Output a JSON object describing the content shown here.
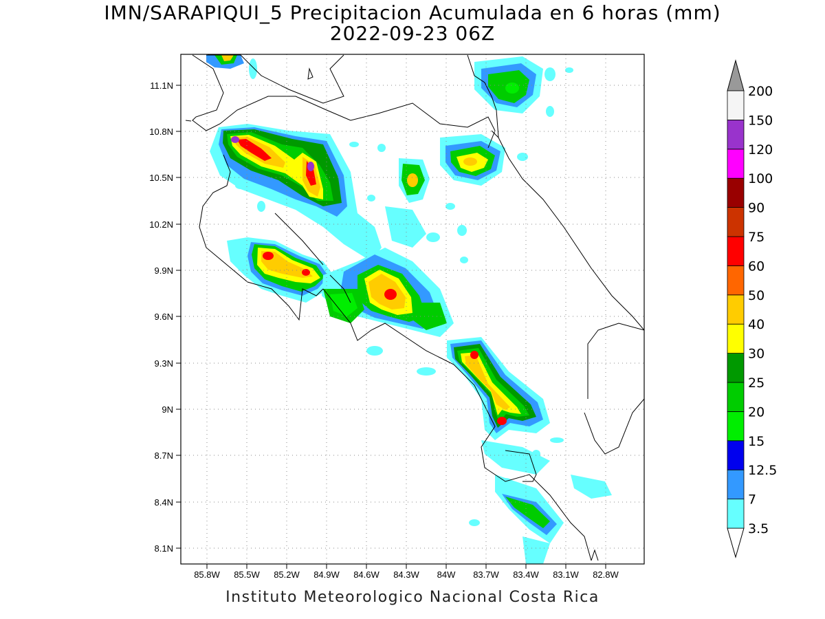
{
  "title_line1": "IMN/SARAPIQUI_5 Precipitacion Acumulada en 6 horas (mm)",
  "title_line2": "2022-09-23 06Z",
  "footer": "Instituto Meteorologico Nacional Costa Rica",
  "lat_labels": [
    "11.1N",
    "10.8N",
    "10.5N",
    "10.2N",
    "9.9N",
    "9.6N",
    "9.3N",
    "9N",
    "8.7N",
    "8.4N",
    "8.1N"
  ],
  "lon_labels": [
    "85.8W",
    "85.5W",
    "85.2W",
    "84.9W",
    "84.6W",
    "84.3W",
    "84W",
    "83.7W",
    "83.4W",
    "83.1W",
    "82.8W"
  ],
  "colorbar": [
    {
      "label": "3.5",
      "color": "#66ffff"
    },
    {
      "label": "7",
      "color": "#3399ff"
    },
    {
      "label": "12.5",
      "color": "#0000ee"
    },
    {
      "label": "15",
      "color": "#00ee00"
    },
    {
      "label": "20",
      "color": "#00cc00"
    },
    {
      "label": "25",
      "color": "#009900"
    },
    {
      "label": "30",
      "color": "#ffff00"
    },
    {
      "label": "40",
      "color": "#ffcc00"
    },
    {
      "label": "50",
      "color": "#ff6600"
    },
    {
      "label": "60",
      "color": "#ff0000"
    },
    {
      "label": "75",
      "color": "#cc3300"
    },
    {
      "label": "90",
      "color": "#990000"
    },
    {
      "label": "100",
      "color": "#ff00ff"
    },
    {
      "label": "120",
      "color": "#9933cc"
    },
    {
      "label": "150",
      "color": "#f5f5f5"
    },
    {
      "label": "200",
      "color": "#999999"
    }
  ]
}
